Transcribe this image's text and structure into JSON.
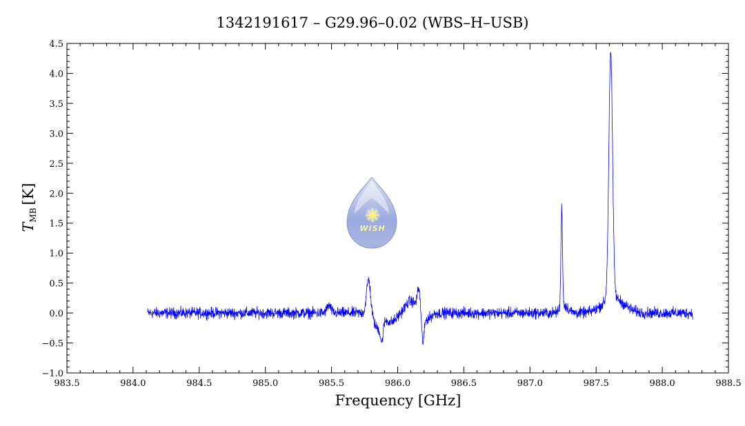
{
  "chart_data": {
    "type": "line",
    "title": "1342191617 – G29.96–0.02 (WBS–H–USB)",
    "xlabel": "Frequency [GHz]",
    "ylabel_main": "T",
    "ylabel_sub": "MB",
    "ylabel_unit": "[K]",
    "xlim": [
      983.5,
      988.5
    ],
    "ylim": [
      -1.0,
      4.5
    ],
    "x_ticks": [
      983.5,
      984.0,
      984.5,
      985.0,
      985.5,
      986.0,
      986.5,
      987.0,
      987.5,
      988.0,
      988.5
    ],
    "y_ticks": [
      -1.0,
      -0.5,
      0.0,
      0.5,
      1.0,
      1.5,
      2.0,
      2.5,
      3.0,
      3.5,
      4.0,
      4.5
    ],
    "x_tick_labels": [
      "983.5",
      "984.0",
      "984.5",
      "985.0",
      "985.5",
      "986.0",
      "986.5",
      "987.0",
      "987.5",
      "988.0",
      "988.5"
    ],
    "y_tick_labels": [
      "−1.0",
      "−0.5",
      "0.0",
      "0.5",
      "1.0",
      "1.5",
      "2.0",
      "2.5",
      "3.0",
      "3.5",
      "4.0",
      "4.5"
    ],
    "grid": false,
    "series": [
      {
        "color": "#0000ff",
        "x_range": [
          984.11,
          988.23
        ],
        "baseline": 0.0,
        "noise_amplitude": 0.07,
        "features": [
          {
            "x": 985.48,
            "amplitude": 0.12,
            "width": 0.015
          },
          {
            "x": 985.78,
            "amplitude": 0.58,
            "width": 0.015
          },
          {
            "x": 985.85,
            "amplitude": -0.25,
            "width": 0.03
          },
          {
            "x": 985.88,
            "amplitude": -0.3,
            "width": 0.01
          },
          {
            "x": 985.95,
            "amplitude": -0.15,
            "width": 0.04
          },
          {
            "x": 986.1,
            "amplitude": 0.2,
            "width": 0.04
          },
          {
            "x": 986.16,
            "amplitude": 0.35,
            "width": 0.012
          },
          {
            "x": 986.19,
            "amplitude": -0.45,
            "width": 0.01
          },
          {
            "x": 986.22,
            "amplitude": -0.1,
            "width": 0.03
          },
          {
            "x": 987.24,
            "amplitude": 1.67,
            "width": 0.006
          },
          {
            "x": 987.26,
            "amplitude": 0.12,
            "width": 0.03
          },
          {
            "x": 987.61,
            "amplitude": 4.12,
            "width": 0.014
          },
          {
            "x": 987.63,
            "amplitude": 0.25,
            "width": 0.08
          }
        ]
      }
    ]
  },
  "logo": {
    "text": "WISH",
    "colors": {
      "drop_top": "#cfd8ec",
      "drop_bottom": "#7b8fcf",
      "star": "#fff36b"
    }
  },
  "colors": {
    "axis": "#000000",
    "series": "#0000ff",
    "background": "#ffffff"
  }
}
